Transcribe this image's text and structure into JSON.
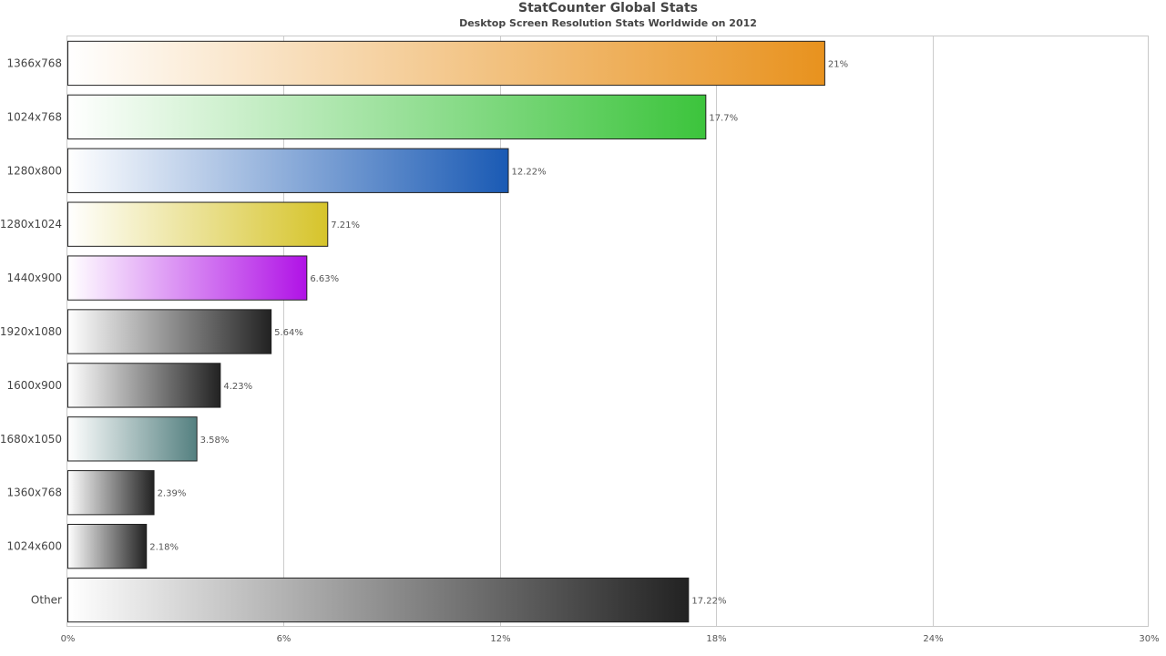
{
  "chart_data": {
    "type": "bar",
    "orientation": "horizontal",
    "title": "StatCounter Global Stats",
    "subtitle": "Desktop Screen Resolution Stats Worldwide on 2012",
    "categories": [
      "1366x768",
      "1024x768",
      "1280x800",
      "1280x1024",
      "1440x900",
      "1920x1080",
      "1600x900",
      "1680x1050",
      "1360x768",
      "1024x600",
      "Other"
    ],
    "values": [
      21,
      17.7,
      12.22,
      7.21,
      6.63,
      5.64,
      4.23,
      3.58,
      2.39,
      2.18,
      17.22
    ],
    "value_labels": [
      "21%",
      "17.7%",
      "12.22%",
      "7.21%",
      "6.63%",
      "5.64%",
      "4.23%",
      "3.58%",
      "2.39%",
      "2.18%",
      "17.22%"
    ],
    "bar_colors": [
      "#e8921e",
      "#3cc43c",
      "#1a5ab4",
      "#d6c42a",
      "#b012e6",
      "#222222",
      "#222222",
      "#548080",
      "#222222",
      "#222222",
      "#222222"
    ],
    "xlim": [
      0,
      30
    ],
    "x_ticks": [
      "0%",
      "6%",
      "12%",
      "18%",
      "24%",
      "30%"
    ],
    "x_tick_values": [
      0,
      6,
      12,
      18,
      24,
      30
    ],
    "grid": true,
    "legend": "none"
  }
}
